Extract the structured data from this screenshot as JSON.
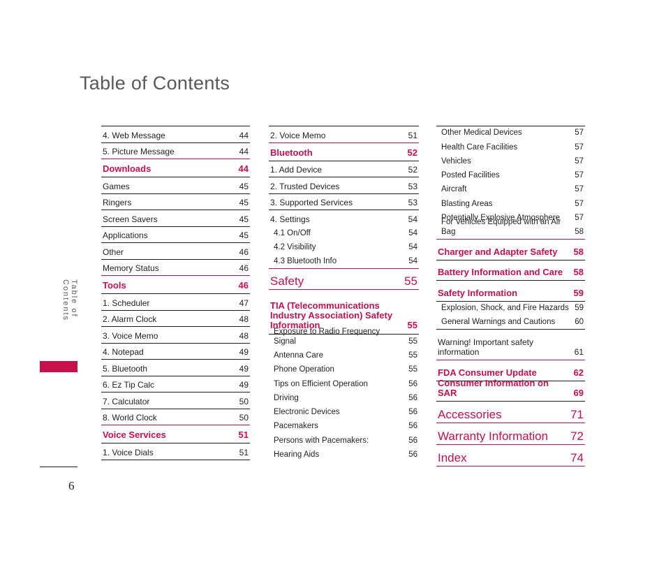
{
  "page": {
    "title": "Table of Contents",
    "side_label": "Table of Contents",
    "page_number": "6"
  },
  "columns": [
    {
      "entries": [
        {
          "type": "normal",
          "label": "4. Web Message",
          "page": "44"
        },
        {
          "type": "normal",
          "label": "5. Picture Message",
          "page": "44"
        },
        {
          "type": "head",
          "label": "Downloads",
          "page": "44"
        },
        {
          "type": "normal",
          "label": "Games",
          "page": "45"
        },
        {
          "type": "normal",
          "label": "Ringers",
          "page": "45"
        },
        {
          "type": "normal",
          "label": "Screen Savers",
          "page": "45"
        },
        {
          "type": "normal",
          "label": "Applications",
          "page": "45"
        },
        {
          "type": "normal",
          "label": "Other",
          "page": "46"
        },
        {
          "type": "normal",
          "label": "Memory Status",
          "page": "46"
        },
        {
          "type": "head",
          "label": "Tools",
          "page": "46"
        },
        {
          "type": "normal",
          "label": "1. Scheduler",
          "page": "47"
        },
        {
          "type": "normal",
          "label": "2. Alarm Clock",
          "page": "48"
        },
        {
          "type": "normal",
          "label": "3. Voice Memo",
          "page": "48"
        },
        {
          "type": "normal",
          "label": "4. Notepad",
          "page": "49"
        },
        {
          "type": "normal",
          "label": "5. Bluetooth",
          "page": "49"
        },
        {
          "type": "normal",
          "label": "6. Ez Tip Calc",
          "page": "49"
        },
        {
          "type": "normal",
          "label": "7. Calculator",
          "page": "50"
        },
        {
          "type": "normal",
          "label": "8. World Clock",
          "page": "50"
        },
        {
          "type": "head",
          "label": "Voice Services",
          "page": "51"
        },
        {
          "type": "normal",
          "label": "1. Voice Dials",
          "page": "51"
        }
      ]
    },
    {
      "entries": [
        {
          "type": "normal",
          "label": "2. Voice Memo",
          "page": "51"
        },
        {
          "type": "head",
          "label": "Bluetooth",
          "page": "52"
        },
        {
          "type": "normal",
          "label": "1. Add Device",
          "page": "52"
        },
        {
          "type": "normal",
          "label": "2. Trusted Devices",
          "page": "53"
        },
        {
          "type": "normal",
          "label": "3. Supported Services",
          "page": "53"
        },
        {
          "type": "normal",
          "label": "4. Settings",
          "page": "54"
        },
        {
          "type": "subnb",
          "label": "4.1 On/Off",
          "page": "54"
        },
        {
          "type": "subnb",
          "label": "4.2 Visibility",
          "page": "54"
        },
        {
          "type": "subnb",
          "label": "4.3 Bluetooth Info",
          "page": "54"
        },
        {
          "type": "big",
          "label": "Safety",
          "page": "55"
        },
        {
          "type": "headtall",
          "label": "TIA (Telecommunications Industry Association) Safety Information",
          "page": "55"
        },
        {
          "type": "subfirst",
          "label": "Exposure to Radio Frequency Signal",
          "page": "55"
        },
        {
          "type": "sub",
          "label": "Antenna Care",
          "page": "55"
        },
        {
          "type": "sub",
          "label": "Phone Operation",
          "page": "55"
        },
        {
          "type": "sub",
          "label": "Tips on Efficient Operation",
          "page": "56"
        },
        {
          "type": "sub",
          "label": "Driving",
          "page": "56"
        },
        {
          "type": "sub",
          "label": "Electronic Devices",
          "page": "56"
        },
        {
          "type": "sub",
          "label": "Pacemakers",
          "page": "56"
        },
        {
          "type": "sub",
          "label": "Persons with Pacemakers:",
          "page": "56"
        },
        {
          "type": "sub",
          "label": "Hearing Aids",
          "page": "56"
        }
      ]
    },
    {
      "entries": [
        {
          "type": "subfirst",
          "label": "Other Medical Devices",
          "page": "57"
        },
        {
          "type": "sub",
          "label": "Health Care Facilities",
          "page": "57"
        },
        {
          "type": "sub",
          "label": "Vehicles",
          "page": "57"
        },
        {
          "type": "sub",
          "label": "Posted Facilities",
          "page": "57"
        },
        {
          "type": "sub",
          "label": "Aircraft",
          "page": "57"
        },
        {
          "type": "sub",
          "label": "Blasting Areas",
          "page": "57"
        },
        {
          "type": "sub",
          "label": "Potentially Explosive Atmosphere",
          "page": "57"
        },
        {
          "type": "sub",
          "label": "For Vehicles Equipped with an Air Bag",
          "page": "58"
        },
        {
          "type": "head",
          "label": "Charger and Adapter Safety",
          "page": "58"
        },
        {
          "type": "head",
          "label": "Battery Information and Care",
          "page": "58"
        },
        {
          "type": "head",
          "label": "Safety Information",
          "page": "59"
        },
        {
          "type": "subfirst",
          "label": "Explosion, Shock, and Fire Hazards",
          "page": "59"
        },
        {
          "type": "sub",
          "label": "General Warnings and Cautions",
          "page": "60"
        },
        {
          "type": "two",
          "label": "Warning! Important safety information",
          "page": "61"
        },
        {
          "type": "head",
          "label": "FDA Consumer Update",
          "page": "62"
        },
        {
          "type": "head",
          "label": "Consumer Information on SAR",
          "page": "69"
        },
        {
          "type": "big",
          "label": "Accessories",
          "page": "71"
        },
        {
          "type": "big",
          "label": "Warranty Information",
          "page": "72"
        },
        {
          "type": "big",
          "label": "Index",
          "page": "74"
        }
      ]
    }
  ]
}
